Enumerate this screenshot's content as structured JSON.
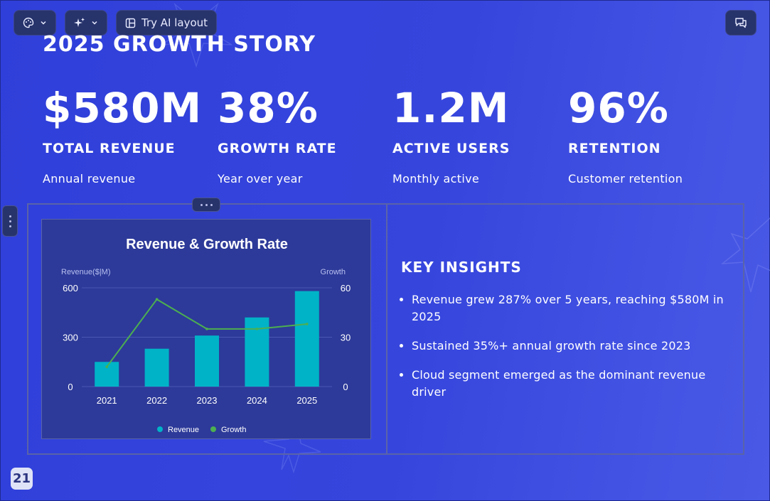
{
  "toolbar": {
    "theme_icon": "palette-icon",
    "ai_icon": "sparkle-icon",
    "ai_layout_label": "Try AI layout",
    "chat_icon": "chat-icon"
  },
  "slide": {
    "title": "2025 Growth Story",
    "stats": [
      {
        "value": "$580M",
        "label": "Total Revenue",
        "desc": "Annual revenue"
      },
      {
        "value": "38%",
        "label": "Growth Rate",
        "desc": "Year over year"
      },
      {
        "value": "1.2M",
        "label": "Active Users",
        "desc": "Monthly active"
      },
      {
        "value": "96%",
        "label": "Retention",
        "desc": "Customer retention"
      }
    ],
    "insights": {
      "title": "Key Insights",
      "items": [
        "Revenue grew 287% over 5 years, reaching $580M in 2025",
        "Sustained 35%+ annual growth rate since 2023",
        "Cloud segment emerged as the dominant revenue driver"
      ]
    },
    "page_number": "21"
  },
  "colors": {
    "background": "#3544dc",
    "bar": "#00b3c7",
    "line": "#4caf50",
    "chart_bg": "#2d3a99"
  },
  "chart_data": {
    "type": "bar",
    "title": "Revenue & Growth Rate",
    "categories": [
      "2021",
      "2022",
      "2023",
      "2024",
      "2025"
    ],
    "series": [
      {
        "name": "Revenue",
        "type": "bar",
        "axis": "left",
        "values": [
          150,
          230,
          310,
          420,
          580
        ]
      },
      {
        "name": "Growth",
        "type": "line",
        "axis": "right",
        "values": [
          12,
          53,
          35,
          35,
          38
        ]
      }
    ],
    "ylabel_left": "Revenue($|M)",
    "ylabel_right": "Growth",
    "ylim_left": [
      0,
      600
    ],
    "ylim_right": [
      0,
      60
    ],
    "yticks_left": [
      "0",
      "300",
      "600"
    ],
    "yticks_right": [
      "0",
      "30",
      "60"
    ],
    "grid": true,
    "legend_position": "bottom"
  }
}
